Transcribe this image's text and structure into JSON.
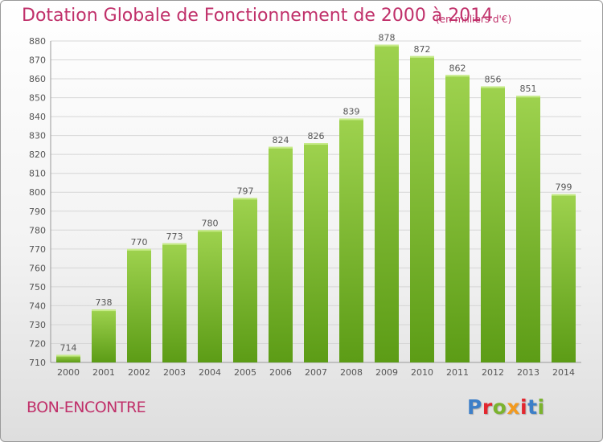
{
  "header": {
    "title": "Dotation Globale de Fonctionnement de 2000 à 2014",
    "unit": "(en milliers d'€)"
  },
  "commune": "BON-ENCONTRE",
  "logo": {
    "letters": [
      "P",
      "r",
      "o",
      "x",
      "i",
      "t",
      "i"
    ],
    "colors": [
      "#3d7fc8",
      "#e3262e",
      "#7bb32e",
      "#f39a1e",
      "#e3262e",
      "#3d7fc8",
      "#7bb32e"
    ]
  },
  "chart_data": {
    "type": "bar",
    "categories": [
      "2000",
      "2001",
      "2002",
      "2003",
      "2004",
      "2005",
      "2006",
      "2007",
      "2008",
      "2009",
      "2010",
      "2011",
      "2012",
      "2013",
      "2014"
    ],
    "values": [
      714,
      738,
      770,
      773,
      780,
      797,
      824,
      826,
      839,
      878,
      872,
      862,
      856,
      851,
      799
    ],
    "ylim": [
      710,
      880
    ],
    "yticks": [
      710,
      720,
      730,
      740,
      750,
      760,
      770,
      780,
      790,
      800,
      810,
      820,
      830,
      840,
      850,
      860,
      870,
      880
    ],
    "grid": true,
    "colors": {
      "bar_top": "#9ed24e",
      "bar_bottom": "#5c9c16",
      "grid": "#d6d6d6",
      "axis_text": "#555555"
    }
  }
}
